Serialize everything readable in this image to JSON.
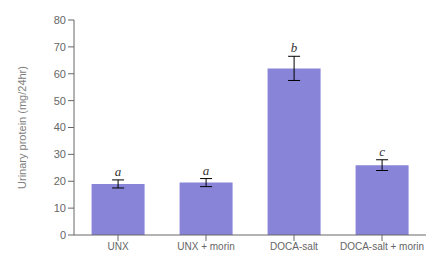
{
  "chart_data": {
    "type": "bar",
    "categories": [
      "UNX",
      "UNX + morin",
      "DOCA-salt",
      "DOCA-salt + morin"
    ],
    "values": [
      19.0,
      19.5,
      62.0,
      26.0
    ],
    "errors": [
      1.5,
      1.5,
      4.5,
      2.0
    ],
    "annotations": [
      "a",
      "a",
      "b",
      "c"
    ],
    "ylabel": "Urinary protein (mg/24hr)",
    "ylim": [
      0,
      80
    ],
    "yticks": [
      0,
      10,
      20,
      30,
      40,
      50,
      60,
      70,
      80
    ],
    "color": "#8884d8",
    "grid": false
  }
}
